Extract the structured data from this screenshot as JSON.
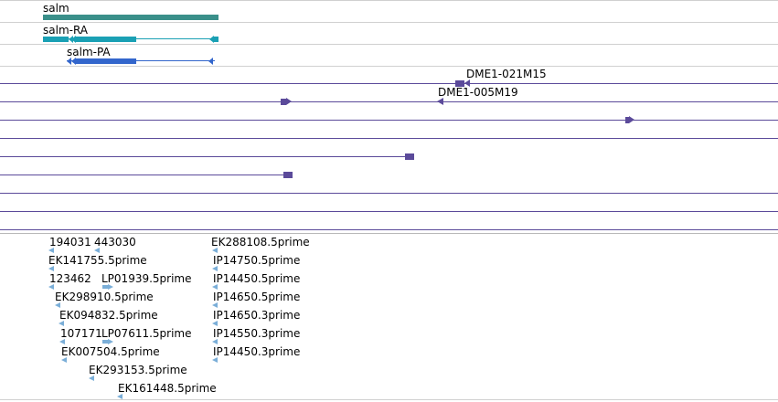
{
  "gene_tracks": {
    "gene": {
      "label": "salm",
      "color": "#3a8f8a"
    },
    "transcripts": [
      {
        "label": "salm-RA",
        "color": "#1aa0b4"
      },
      {
        "label": "salm-PA",
        "color": "#3366cc"
      }
    ]
  },
  "clone_tracks": {
    "color": "#5b4a9a",
    "labels": [
      "DME1-021M15",
      "DME1-005M19"
    ]
  },
  "est_tracks": {
    "color": "#7aaed8",
    "left_labels": [
      "194031",
      "443030",
      "EK141755.5prime",
      "123462",
      "LP01939.5prime",
      "EK298910.5prime",
      "EK094832.5prime",
      "107171",
      "LP07611.5prime",
      "EK007504.5prime",
      "EK293153.5prime",
      "EK161448.5prime"
    ],
    "right_labels": [
      "EK288108.5prime",
      "IP14750.5prime",
      "IP14450.5prime",
      "IP14650.5prime",
      "IP14650.3prime",
      "IP14550.3prime",
      "IP14450.3prime"
    ]
  }
}
